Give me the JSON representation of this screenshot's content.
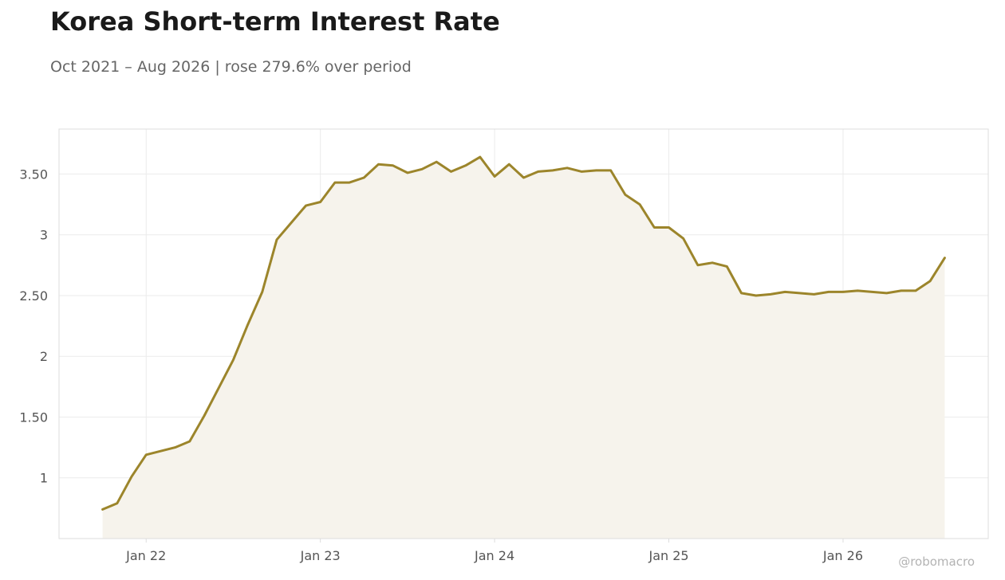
{
  "header": {
    "title": "Korea Short-term Interest Rate",
    "subtitle": "Oct 2021 – Aug 2026 | rose 279.6% over period"
  },
  "watermark": "@robomacro",
  "colors": {
    "line": "#9c852b",
    "fill": "#f6f3ec",
    "grid": "#ebebeb",
    "axis": "#dddddd",
    "tick_label": "#555555"
  },
  "chart_data": {
    "type": "area",
    "title": "Korea Short-term Interest Rate",
    "subtitle": "Oct 2021 – Aug 2026 | rose 279.6% over period",
    "xlabel": "",
    "ylabel": "",
    "x_ticks": [
      "Jan 22",
      "Jan 23",
      "Jan 24",
      "Jan 25",
      "Jan 26"
    ],
    "y_ticks": [
      1,
      1.5,
      2,
      2.5,
      3,
      3.5
    ],
    "y_tick_labels": [
      "1",
      "1.50",
      "2",
      "2.50",
      "3",
      "3.50"
    ],
    "xlim": [
      "2021-07",
      "2026-11"
    ],
    "ylim": [
      0.5,
      3.87
    ],
    "grid": true,
    "legend": "none",
    "series": [
      {
        "x": [
          "2021-10",
          "2021-11",
          "2021-12",
          "2022-01",
          "2022-02",
          "2022-03",
          "2022-04",
          "2022-05",
          "2022-06",
          "2022-07",
          "2022-08",
          "2022-09",
          "2022-10",
          "2022-11",
          "2022-12",
          "2023-01",
          "2023-02",
          "2023-03",
          "2023-04",
          "2023-05",
          "2023-06",
          "2023-07",
          "2023-08",
          "2023-09",
          "2023-10",
          "2023-11",
          "2023-12",
          "2024-01",
          "2024-02",
          "2024-03",
          "2024-04",
          "2024-05",
          "2024-06",
          "2024-07",
          "2024-08",
          "2024-09",
          "2024-10",
          "2024-11",
          "2024-12",
          "2025-01",
          "2025-02",
          "2025-03",
          "2025-04",
          "2025-05",
          "2025-06",
          "2025-07",
          "2025-08",
          "2025-09",
          "2025-10",
          "2025-11",
          "2025-12",
          "2026-01",
          "2026-02",
          "2026-03",
          "2026-04",
          "2026-05",
          "2026-06",
          "2026-07",
          "2026-08"
        ],
        "values": [
          0.74,
          0.79,
          1.01,
          1.19,
          1.22,
          1.25,
          1.3,
          1.51,
          1.74,
          1.97,
          2.26,
          2.53,
          2.96,
          3.1,
          3.24,
          3.27,
          3.43,
          3.43,
          3.47,
          3.58,
          3.57,
          3.51,
          3.54,
          3.6,
          3.52,
          3.57,
          3.64,
          3.48,
          3.58,
          3.47,
          3.52,
          3.53,
          3.55,
          3.52,
          3.53,
          3.53,
          3.33,
          3.25,
          3.06,
          3.06,
          2.97,
          2.75,
          2.77,
          2.74,
          2.52,
          2.5,
          2.51,
          2.53,
          2.52,
          2.51,
          2.53,
          2.53,
          2.54,
          2.53,
          2.52,
          2.54,
          2.54,
          2.62,
          2.81
        ]
      }
    ]
  }
}
